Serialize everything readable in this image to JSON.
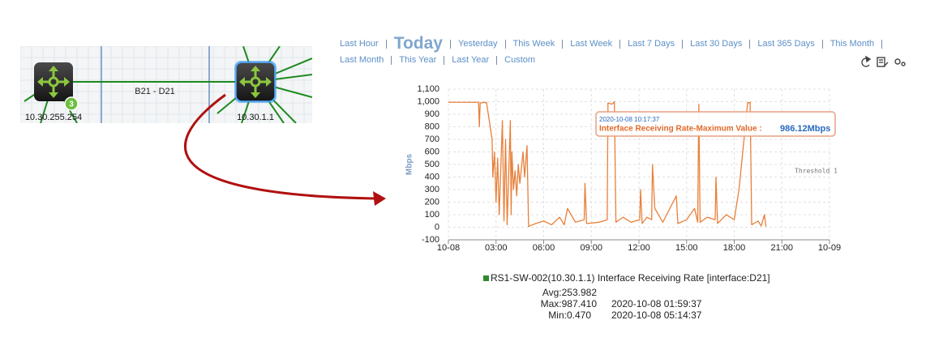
{
  "topology": {
    "nodes": [
      {
        "label": "10.30.255.254",
        "badge": "3"
      },
      {
        "label": "10.30.1.1"
      }
    ],
    "link_label": "B21 - D21"
  },
  "time_ranges": [
    [
      "Last Hour",
      "Today",
      "Yesterday",
      "This Week",
      "Last Week",
      "Last 7 Days",
      "Last 30 Days",
      "Last 365 Days",
      "This Month"
    ],
    [
      "Last Month",
      "This Year",
      "Last Year",
      "Custom"
    ]
  ],
  "selected_range": "Today",
  "chart": {
    "type": "line",
    "y_label": "Mbps",
    "x": [
      0,
      1.9,
      1.95,
      2.0,
      2.3,
      2.35,
      2.4,
      2.75,
      2.8,
      2.9,
      3.0,
      3.1,
      3.2,
      3.4,
      3.5,
      3.6,
      3.7,
      3.9,
      3.95,
      4.0,
      4.1,
      4.2,
      4.3,
      4.4,
      4.5,
      4.7,
      4.8,
      4.95,
      5.05,
      5.1,
      5.5,
      6.0,
      6.5,
      7.0,
      7.3,
      7.5,
      8.0,
      8.55,
      8.6,
      8.7,
      9.5,
      10.0,
      10.05,
      10.3,
      10.45,
      10.55,
      11.0,
      11.5,
      12.05,
      12.1,
      12.2,
      12.5,
      12.8,
      12.85,
      13.0,
      13.5,
      14.35,
      14.45,
      15.0,
      15.5,
      15.7,
      15.77,
      15.85,
      16.3,
      16.8,
      16.85,
      16.95,
      17.5,
      18.0,
      18.3,
      18.85,
      18.9,
      19.0,
      19.1,
      19.5,
      19.7,
      19.9,
      20.0
    ],
    "series": [
      {
        "name": "RS1-SW-002(10.30.1.1) Interface Receiving Rate [interface:D21]",
        "color": "#e8803a",
        "legend_color": "#2e8b2e",
        "values": [
          995,
          995,
          800,
          990,
          995,
          990,
          995,
          700,
          400,
          600,
          200,
          550,
          100,
          850,
          50,
          700,
          20,
          850,
          100,
          600,
          300,
          450,
          250,
          500,
          350,
          600,
          400,
          650,
          5,
          10,
          30,
          50,
          20,
          80,
          20,
          150,
          40,
          60,
          350,
          30,
          40,
          60,
          990,
          980,
          1000,
          40,
          80,
          40,
          60,
          300,
          30,
          80,
          60,
          500,
          150,
          40,
          250,
          30,
          60,
          150,
          40,
          980,
          40,
          80,
          60,
          400,
          30,
          100,
          60,
          300,
          995,
          990,
          995,
          20,
          50,
          10,
          100,
          5
        ]
      }
    ],
    "xlim": [
      0,
      24
    ],
    "xticks": [
      {
        "value": 0,
        "label": "10-08"
      },
      {
        "value": 3,
        "label": "03:00"
      },
      {
        "value": 6,
        "label": "06:00"
      },
      {
        "value": 9,
        "label": "09:00"
      },
      {
        "value": 12,
        "label": "12:00"
      },
      {
        "value": 15,
        "label": "15:00"
      },
      {
        "value": 18,
        "label": "18:00"
      },
      {
        "value": 21,
        "label": "21:00"
      },
      {
        "value": 24,
        "label": "10-09"
      }
    ],
    "ylim": [
      -100,
      1100
    ],
    "yticks": [
      -100,
      0,
      100,
      200,
      300,
      400,
      500,
      600,
      700,
      800,
      900,
      {
        "value": 1000,
        "label": "1,000"
      },
      {
        "value": 1100,
        "label": "1,100"
      }
    ],
    "grid": true,
    "tooltip": {
      "time": "2020-10-08 10:17:37",
      "label": "Interface Receiving Rate-Maximum Value :",
      "value": "986.12Mbps"
    },
    "threshold_label": "Threshold 1"
  },
  "stats": {
    "avg": "Avg:253.982",
    "max": "Max:987.410",
    "max_time": "2020-10-08 01:59:37",
    "min": "Min:0.470",
    "min_time": "2020-10-08 05:14:37"
  }
}
